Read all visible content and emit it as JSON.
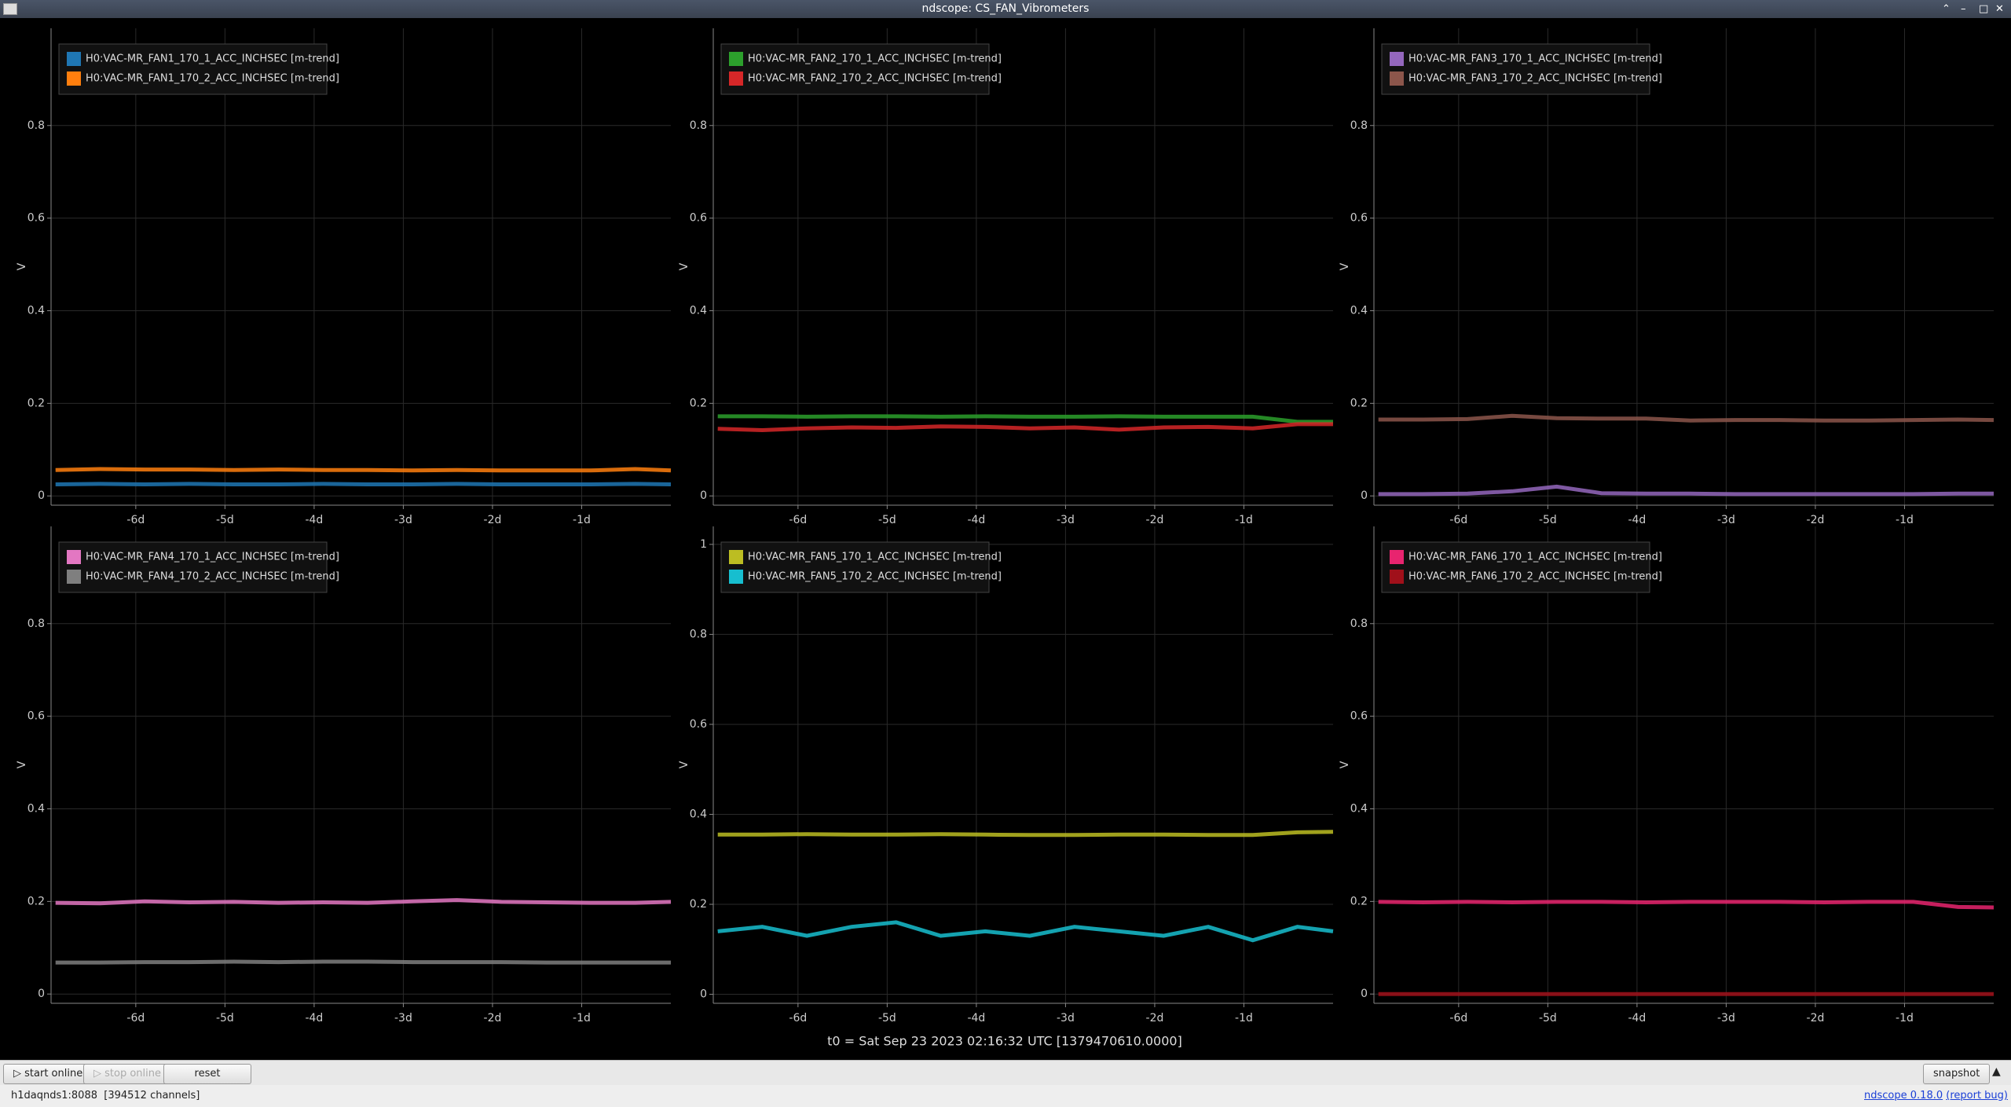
{
  "window": {
    "title": "ndscope: CS_FAN_Vibrometers"
  },
  "chart_data": [
    {
      "type": "line",
      "ylabel": "V",
      "grid": true,
      "legend": "upper left",
      "x": [
        -6.9,
        -6.4,
        -5.9,
        -5.4,
        -4.9,
        -4.4,
        -3.9,
        -3.4,
        -2.9,
        -2.4,
        -1.9,
        -1.4,
        -0.9,
        -0.4,
        0
      ],
      "xlim": [
        -6.95,
        0
      ],
      "ylim": [
        -0.02,
        1.01
      ],
      "xticks": [
        {
          "value": -6,
          "label": "-6d"
        },
        {
          "value": -5,
          "label": "-5d"
        },
        {
          "value": -4,
          "label": "-4d"
        },
        {
          "value": -3,
          "label": "-3d"
        },
        {
          "value": -2,
          "label": "-2d"
        },
        {
          "value": -1,
          "label": "-1d"
        }
      ],
      "yticks": [
        0,
        0.2,
        0.4,
        0.6,
        0.8
      ],
      "series": [
        {
          "name": "H0:VAC-MR_FAN1_170_1_ACC_INCHSEC [m-trend]",
          "color": "#1f77b4",
          "values": [
            0.025,
            0.026,
            0.025,
            0.026,
            0.025,
            0.025,
            0.026,
            0.025,
            0.025,
            0.026,
            0.025,
            0.025,
            0.025,
            0.026,
            0.025
          ]
        },
        {
          "name": "H0:VAC-MR_FAN1_170_2_ACC_INCHSEC [m-trend]",
          "color": "#ff7f0e",
          "values": [
            0.056,
            0.058,
            0.057,
            0.057,
            0.056,
            0.057,
            0.056,
            0.056,
            0.055,
            0.056,
            0.055,
            0.055,
            0.055,
            0.058,
            0.055
          ]
        }
      ]
    },
    {
      "type": "line",
      "ylabel": "V",
      "grid": true,
      "legend": "upper left",
      "x": [
        -6.9,
        -6.4,
        -5.9,
        -5.4,
        -4.9,
        -4.4,
        -3.9,
        -3.4,
        -2.9,
        -2.4,
        -1.9,
        -1.4,
        -0.9,
        -0.4,
        0
      ],
      "xlim": [
        -6.95,
        0
      ],
      "ylim": [
        -0.02,
        1.01
      ],
      "xticks": [
        {
          "value": -6,
          "label": "-6d"
        },
        {
          "value": -5,
          "label": "-5d"
        },
        {
          "value": -4,
          "label": "-4d"
        },
        {
          "value": -3,
          "label": "-3d"
        },
        {
          "value": -2,
          "label": "-2d"
        },
        {
          "value": -1,
          "label": "-1d"
        }
      ],
      "yticks": [
        0,
        0.2,
        0.4,
        0.6,
        0.8
      ],
      "series": [
        {
          "name": "H0:VAC-MR_FAN2_170_1_ACC_INCHSEC [m-trend]",
          "color": "#2ca02c",
          "values": [
            0.172,
            0.172,
            0.171,
            0.172,
            0.172,
            0.171,
            0.172,
            0.171,
            0.171,
            0.172,
            0.171,
            0.171,
            0.171,
            0.16,
            0.16
          ]
        },
        {
          "name": "H0:VAC-MR_FAN2_170_2_ACC_INCHSEC [m-trend]",
          "color": "#d62728",
          "values": [
            0.145,
            0.142,
            0.146,
            0.148,
            0.147,
            0.15,
            0.149,
            0.146,
            0.148,
            0.143,
            0.148,
            0.149,
            0.146,
            0.155,
            0.155
          ]
        }
      ]
    },
    {
      "type": "line",
      "ylabel": "V",
      "grid": true,
      "legend": "upper left",
      "x": [
        -6.9,
        -6.4,
        -5.9,
        -5.4,
        -4.9,
        -4.4,
        -3.9,
        -3.4,
        -2.9,
        -2.4,
        -1.9,
        -1.4,
        -0.9,
        -0.4,
        0
      ],
      "xlim": [
        -6.95,
        0
      ],
      "ylim": [
        -0.02,
        1.01
      ],
      "xticks": [
        {
          "value": -6,
          "label": "-6d"
        },
        {
          "value": -5,
          "label": "-5d"
        },
        {
          "value": -4,
          "label": "-4d"
        },
        {
          "value": -3,
          "label": "-3d"
        },
        {
          "value": -2,
          "label": "-2d"
        },
        {
          "value": -1,
          "label": "-1d"
        }
      ],
      "yticks": [
        0,
        0.2,
        0.4,
        0.6,
        0.8
      ],
      "series": [
        {
          "name": "H0:VAC-MR_FAN3_170_1_ACC_INCHSEC [m-trend]",
          "color": "#9467bd",
          "values": [
            0.004,
            0.004,
            0.005,
            0.01,
            0.02,
            0.006,
            0.005,
            0.005,
            0.004,
            0.004,
            0.004,
            0.004,
            0.004,
            0.005,
            0.005
          ]
        },
        {
          "name": "H0:VAC-MR_FAN3_170_2_ACC_INCHSEC [m-trend]",
          "color": "#8c564b",
          "values": [
            0.165,
            0.165,
            0.166,
            0.173,
            0.168,
            0.167,
            0.167,
            0.163,
            0.164,
            0.164,
            0.163,
            0.163,
            0.164,
            0.165,
            0.164
          ]
        }
      ]
    },
    {
      "type": "line",
      "ylabel": "V",
      "grid": true,
      "legend": "upper left",
      "x": [
        -6.9,
        -6.4,
        -5.9,
        -5.4,
        -4.9,
        -4.4,
        -3.9,
        -3.4,
        -2.9,
        -2.4,
        -1.9,
        -1.4,
        -0.9,
        -0.4,
        0
      ],
      "xlim": [
        -6.95,
        0
      ],
      "ylim": [
        -0.02,
        1.01
      ],
      "xticks": [
        {
          "value": -6,
          "label": "-6d"
        },
        {
          "value": -5,
          "label": "-5d"
        },
        {
          "value": -4,
          "label": "-4d"
        },
        {
          "value": -3,
          "label": "-3d"
        },
        {
          "value": -2,
          "label": "-2d"
        },
        {
          "value": -1,
          "label": "-1d"
        }
      ],
      "yticks": [
        0,
        0.2,
        0.4,
        0.6,
        0.8
      ],
      "series": [
        {
          "name": "H0:VAC-MR_FAN4_170_1_ACC_INCHSEC [m-trend]",
          "color": "#e377c2",
          "values": [
            0.197,
            0.196,
            0.2,
            0.198,
            0.199,
            0.197,
            0.198,
            0.197,
            0.2,
            0.203,
            0.199,
            0.198,
            0.197,
            0.197,
            0.199
          ]
        },
        {
          "name": "H0:VAC-MR_FAN4_170_2_ACC_INCHSEC [m-trend]",
          "color": "#7f7f7f",
          "values": [
            0.068,
            0.068,
            0.069,
            0.069,
            0.07,
            0.069,
            0.07,
            0.07,
            0.069,
            0.069,
            0.069,
            0.068,
            0.068,
            0.068,
            0.068
          ]
        }
      ]
    },
    {
      "type": "line",
      "ylabel": "V",
      "grid": true,
      "legend": "upper left",
      "x": [
        -6.9,
        -6.4,
        -5.9,
        -5.4,
        -4.9,
        -4.4,
        -3.9,
        -3.4,
        -2.9,
        -2.4,
        -1.9,
        -1.4,
        -0.9,
        -0.4,
        0
      ],
      "xlim": [
        -6.95,
        0
      ],
      "ylim": [
        -0.02,
        1.04
      ],
      "xticks": [
        {
          "value": -6,
          "label": "-6d"
        },
        {
          "value": -5,
          "label": "-5d"
        },
        {
          "value": -4,
          "label": "-4d"
        },
        {
          "value": -3,
          "label": "-3d"
        },
        {
          "value": -2,
          "label": "-2d"
        },
        {
          "value": -1,
          "label": "-1d"
        }
      ],
      "yticks": [
        0,
        0.2,
        0.4,
        0.6,
        0.8,
        1
      ],
      "series": [
        {
          "name": "H0:VAC-MR_FAN5_170_1_ACC_INCHSEC [m-trend]",
          "color": "#bcbd22",
          "values": [
            0.355,
            0.355,
            0.356,
            0.355,
            0.355,
            0.356,
            0.355,
            0.354,
            0.354,
            0.355,
            0.355,
            0.354,
            0.354,
            0.36,
            0.361
          ]
        },
        {
          "name": "H0:VAC-MR_FAN5_170_2_ACC_INCHSEC [m-trend]",
          "color": "#17becf",
          "values": [
            0.14,
            0.15,
            0.13,
            0.15,
            0.16,
            0.13,
            0.14,
            0.13,
            0.15,
            0.14,
            0.13,
            0.15,
            0.12,
            0.15,
            0.14
          ]
        }
      ]
    },
    {
      "type": "line",
      "ylabel": "V",
      "grid": true,
      "legend": "upper left",
      "x": [
        -6.9,
        -6.4,
        -5.9,
        -5.4,
        -4.9,
        -4.4,
        -3.9,
        -3.4,
        -2.9,
        -2.4,
        -1.9,
        -1.4,
        -0.9,
        -0.4,
        0
      ],
      "xlim": [
        -6.95,
        0
      ],
      "ylim": [
        -0.02,
        1.01
      ],
      "xticks": [
        {
          "value": -6,
          "label": "-6d"
        },
        {
          "value": -5,
          "label": "-5d"
        },
        {
          "value": -4,
          "label": "-4d"
        },
        {
          "value": -3,
          "label": "-3d"
        },
        {
          "value": -2,
          "label": "-2d"
        },
        {
          "value": -1,
          "label": "-1d"
        }
      ],
      "yticks": [
        0,
        0.2,
        0.4,
        0.6,
        0.8
      ],
      "series": [
        {
          "name": "H0:VAC-MR_FAN6_170_1_ACC_INCHSEC [m-trend]",
          "color": "#e8246f",
          "values": [
            0.199,
            0.198,
            0.199,
            0.198,
            0.199,
            0.199,
            0.198,
            0.199,
            0.199,
            0.199,
            0.198,
            0.199,
            0.199,
            0.188,
            0.187
          ]
        },
        {
          "name": "H0:VAC-MR_FAN6_170_2_ACC_INCHSEC [m-trend]",
          "color": "#a0101a",
          "values": [
            0,
            0,
            0,
            0,
            0,
            0,
            0,
            0,
            0,
            0,
            0,
            0,
            0,
            0,
            0
          ]
        }
      ]
    }
  ],
  "footer": {
    "t0": "t0 = Sat Sep 23 2023 02:16:32 UTC [1379470610.0000]"
  },
  "toolbar": {
    "start": "start online",
    "stop": "stop online",
    "reset": "reset",
    "snapshot": "snapshot"
  },
  "status": {
    "server": "h1daqnds1:8088  [394512 channels]",
    "version": "ndscope 0.18.0",
    "report": "(report bug)"
  }
}
